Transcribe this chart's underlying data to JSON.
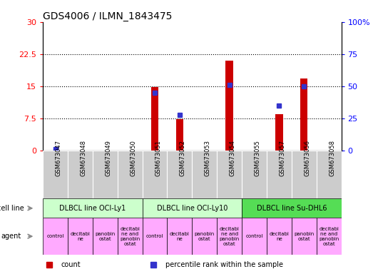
{
  "title": "GDS4006 / ILMN_1843475",
  "samples": [
    "GSM673047",
    "GSM673048",
    "GSM673049",
    "GSM673050",
    "GSM673051",
    "GSM673052",
    "GSM673053",
    "GSM673054",
    "GSM673055",
    "GSM673057",
    "GSM673056",
    "GSM673058"
  ],
  "counts": [
    0,
    0,
    0,
    0,
    14.8,
    7.3,
    0,
    21.0,
    0,
    8.5,
    16.8,
    0
  ],
  "percentiles": [
    1.0,
    0,
    0,
    0,
    45,
    28,
    0,
    51,
    0,
    35,
    50,
    0
  ],
  "count_color": "#cc0000",
  "percentile_color": "#3333cc",
  "ylim_left": [
    0,
    30
  ],
  "ylim_right": [
    0,
    100
  ],
  "yticks_left": [
    0,
    7.5,
    15,
    22.5,
    30
  ],
  "ytick_labels_left": [
    "0",
    "7.5",
    "15",
    "22.5",
    "30"
  ],
  "yticks_right": [
    0,
    25,
    50,
    75,
    100
  ],
  "ytick_labels_right": [
    "0",
    "25",
    "50",
    "75",
    "100%"
  ],
  "cell_line_groups": [
    {
      "label": "DLBCL line OCI-Ly1",
      "start": 0,
      "end": 4,
      "color": "#ccffcc"
    },
    {
      "label": "DLBCL line OCI-Ly10",
      "start": 4,
      "end": 8,
      "color": "#ccffcc"
    },
    {
      "label": "DLBCL line Su-DHL6",
      "start": 8,
      "end": 12,
      "color": "#55dd55"
    }
  ],
  "agent_labels": [
    "control",
    "decitabi\nne",
    "panobin\nostat",
    "decitabi\nne and\npanobin\nostat",
    "control",
    "decitabi\nne",
    "panobin\nostat",
    "decitabi\nne and\npanobin\nostat",
    "control",
    "decitabi\nne",
    "panobin\nostat",
    "decitabi\nne and\npanobin\nostat"
  ],
  "agent_color": "#ffaaff",
  "sample_bg_color": "#cccccc",
  "legend_items": [
    {
      "label": "count",
      "color": "#cc0000"
    },
    {
      "label": "percentile rank within the sample",
      "color": "#3333cc"
    }
  ],
  "cell_line_row_label": "cell line",
  "agent_row_label": "agent",
  "bg_color": "#ffffff",
  "dotted_yticks": [
    7.5,
    15,
    22.5
  ]
}
